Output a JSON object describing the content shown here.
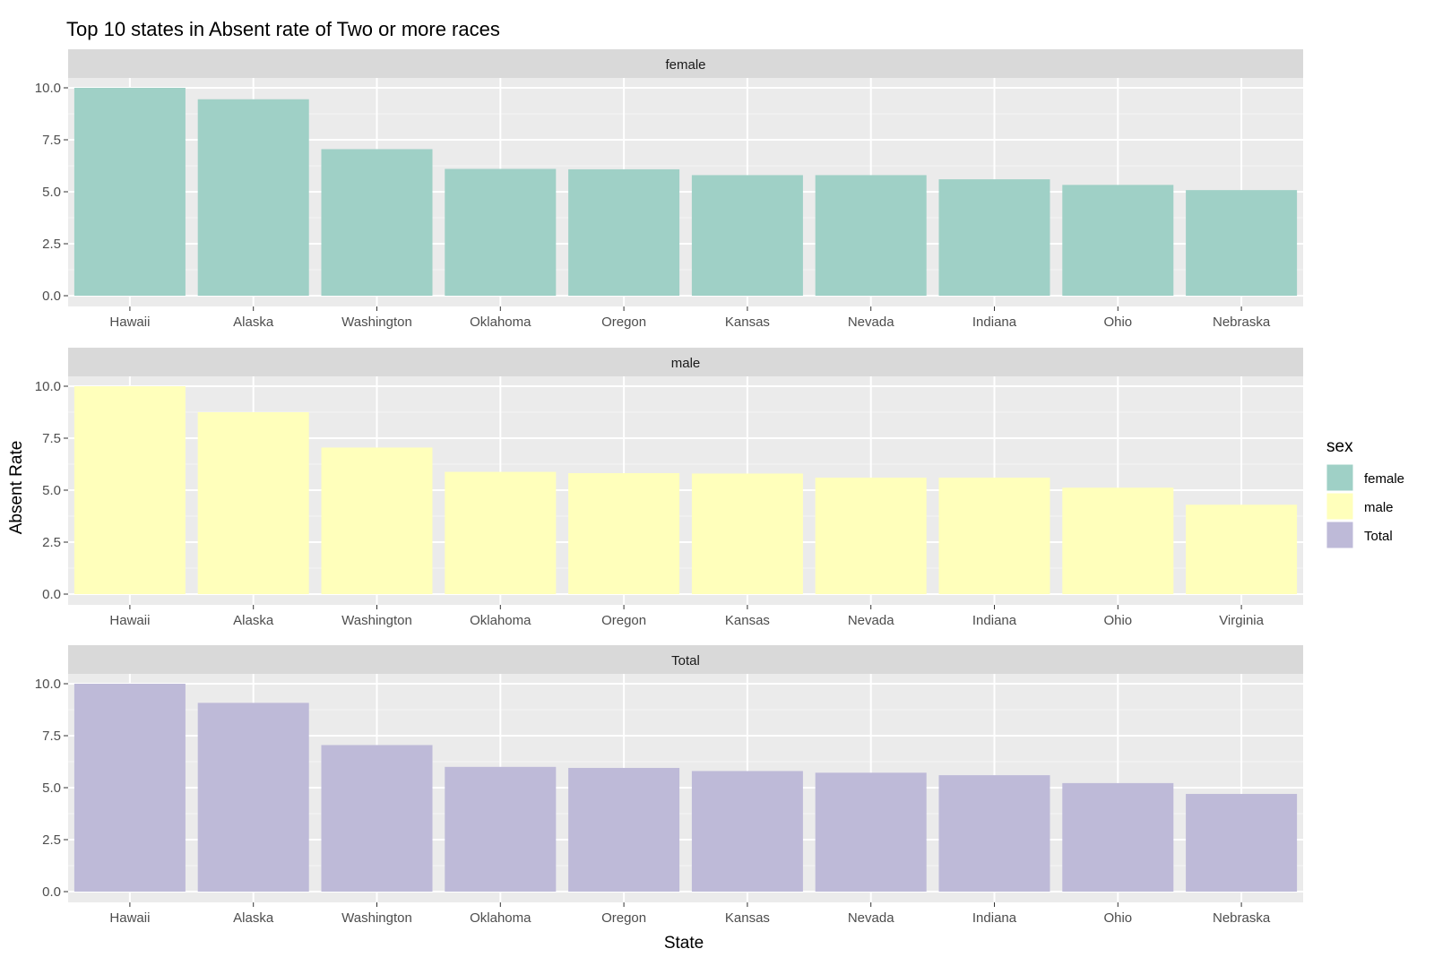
{
  "chart_data": {
    "type": "bar",
    "title": "Top 10 states in Absent rate of Two or more races",
    "xlabel": "State",
    "ylabel": "Absent Rate",
    "ylim": [
      0,
      11.5
    ],
    "yticks": [
      "0.0",
      "2.5",
      "5.0",
      "7.5",
      "10.0"
    ],
    "grid": true,
    "legend": {
      "title": "sex",
      "position": "right",
      "items": [
        {
          "label": "female",
          "color": "#9fd0c6"
        },
        {
          "label": "male",
          "color": "#ffffbb"
        },
        {
          "label": "Total",
          "color": "#bebad8"
        }
      ]
    },
    "panels": [
      {
        "name": "female",
        "color": "#9fd0c6",
        "categories": [
          "Hawaii",
          "Alaska",
          "Washington",
          "Oklahoma",
          "Oregon",
          "Kansas",
          "Nevada",
          "Indiana",
          "Ohio",
          "Nebraska"
        ],
        "values": [
          10.0,
          9.45,
          7.05,
          6.1,
          6.08,
          5.8,
          5.8,
          5.6,
          5.33,
          5.08
        ]
      },
      {
        "name": "male",
        "color": "#ffffbb",
        "categories": [
          "Hawaii",
          "Alaska",
          "Washington",
          "Oklahoma",
          "Oregon",
          "Kansas",
          "Nevada",
          "Indiana",
          "Ohio",
          "Virginia"
        ],
        "values": [
          10.0,
          8.75,
          7.05,
          5.88,
          5.82,
          5.8,
          5.6,
          5.6,
          5.12,
          4.3
        ]
      },
      {
        "name": "Total",
        "color": "#bebad8",
        "categories": [
          "Hawaii",
          "Alaska",
          "Washington",
          "Oklahoma",
          "Oregon",
          "Kansas",
          "Nevada",
          "Indiana",
          "Ohio",
          "Nebraska"
        ],
        "values": [
          10.0,
          9.08,
          7.05,
          6.0,
          5.95,
          5.8,
          5.72,
          5.6,
          5.22,
          4.7
        ]
      }
    ]
  }
}
